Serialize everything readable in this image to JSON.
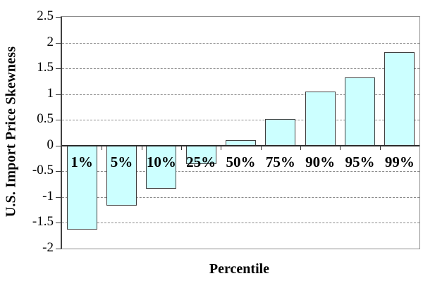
{
  "chart_data": {
    "type": "bar",
    "title": "",
    "xlabel": "Percentile",
    "ylabel": "U.S. Import Price Skewness",
    "categories": [
      "1%",
      "5%",
      "10%",
      "25%",
      "50%",
      "75%",
      "90%",
      "95%",
      "99%"
    ],
    "values": [
      -1.63,
      -1.16,
      -0.84,
      -0.36,
      0.1,
      0.51,
      1.05,
      1.33,
      1.82
    ],
    "ylim": [
      -2,
      2.5
    ],
    "y_tick_labels": [
      "2.5",
      "2",
      "1.5",
      "1",
      "0.5",
      "0",
      "-0.5",
      "-1",
      "-1.5",
      "-2"
    ],
    "y_tick_values": [
      2.5,
      2,
      1.5,
      1,
      0.5,
      0,
      -0.5,
      -1,
      -1.5,
      -2
    ],
    "gridline_values": [
      2,
      1.5,
      1,
      0.5,
      -0.5,
      -1,
      -1.5
    ],
    "grid": "horizontal dashed, every 0.5",
    "legend": "none",
    "colors": {
      "bar_fill": "#CCFFFF",
      "bar_border": "#404040",
      "gridline": "#8A8A8A",
      "axis_line": "#2B2B2B",
      "plot_border": "#8C8C8C",
      "text": "#000000",
      "background": "#FFFFFF"
    }
  }
}
